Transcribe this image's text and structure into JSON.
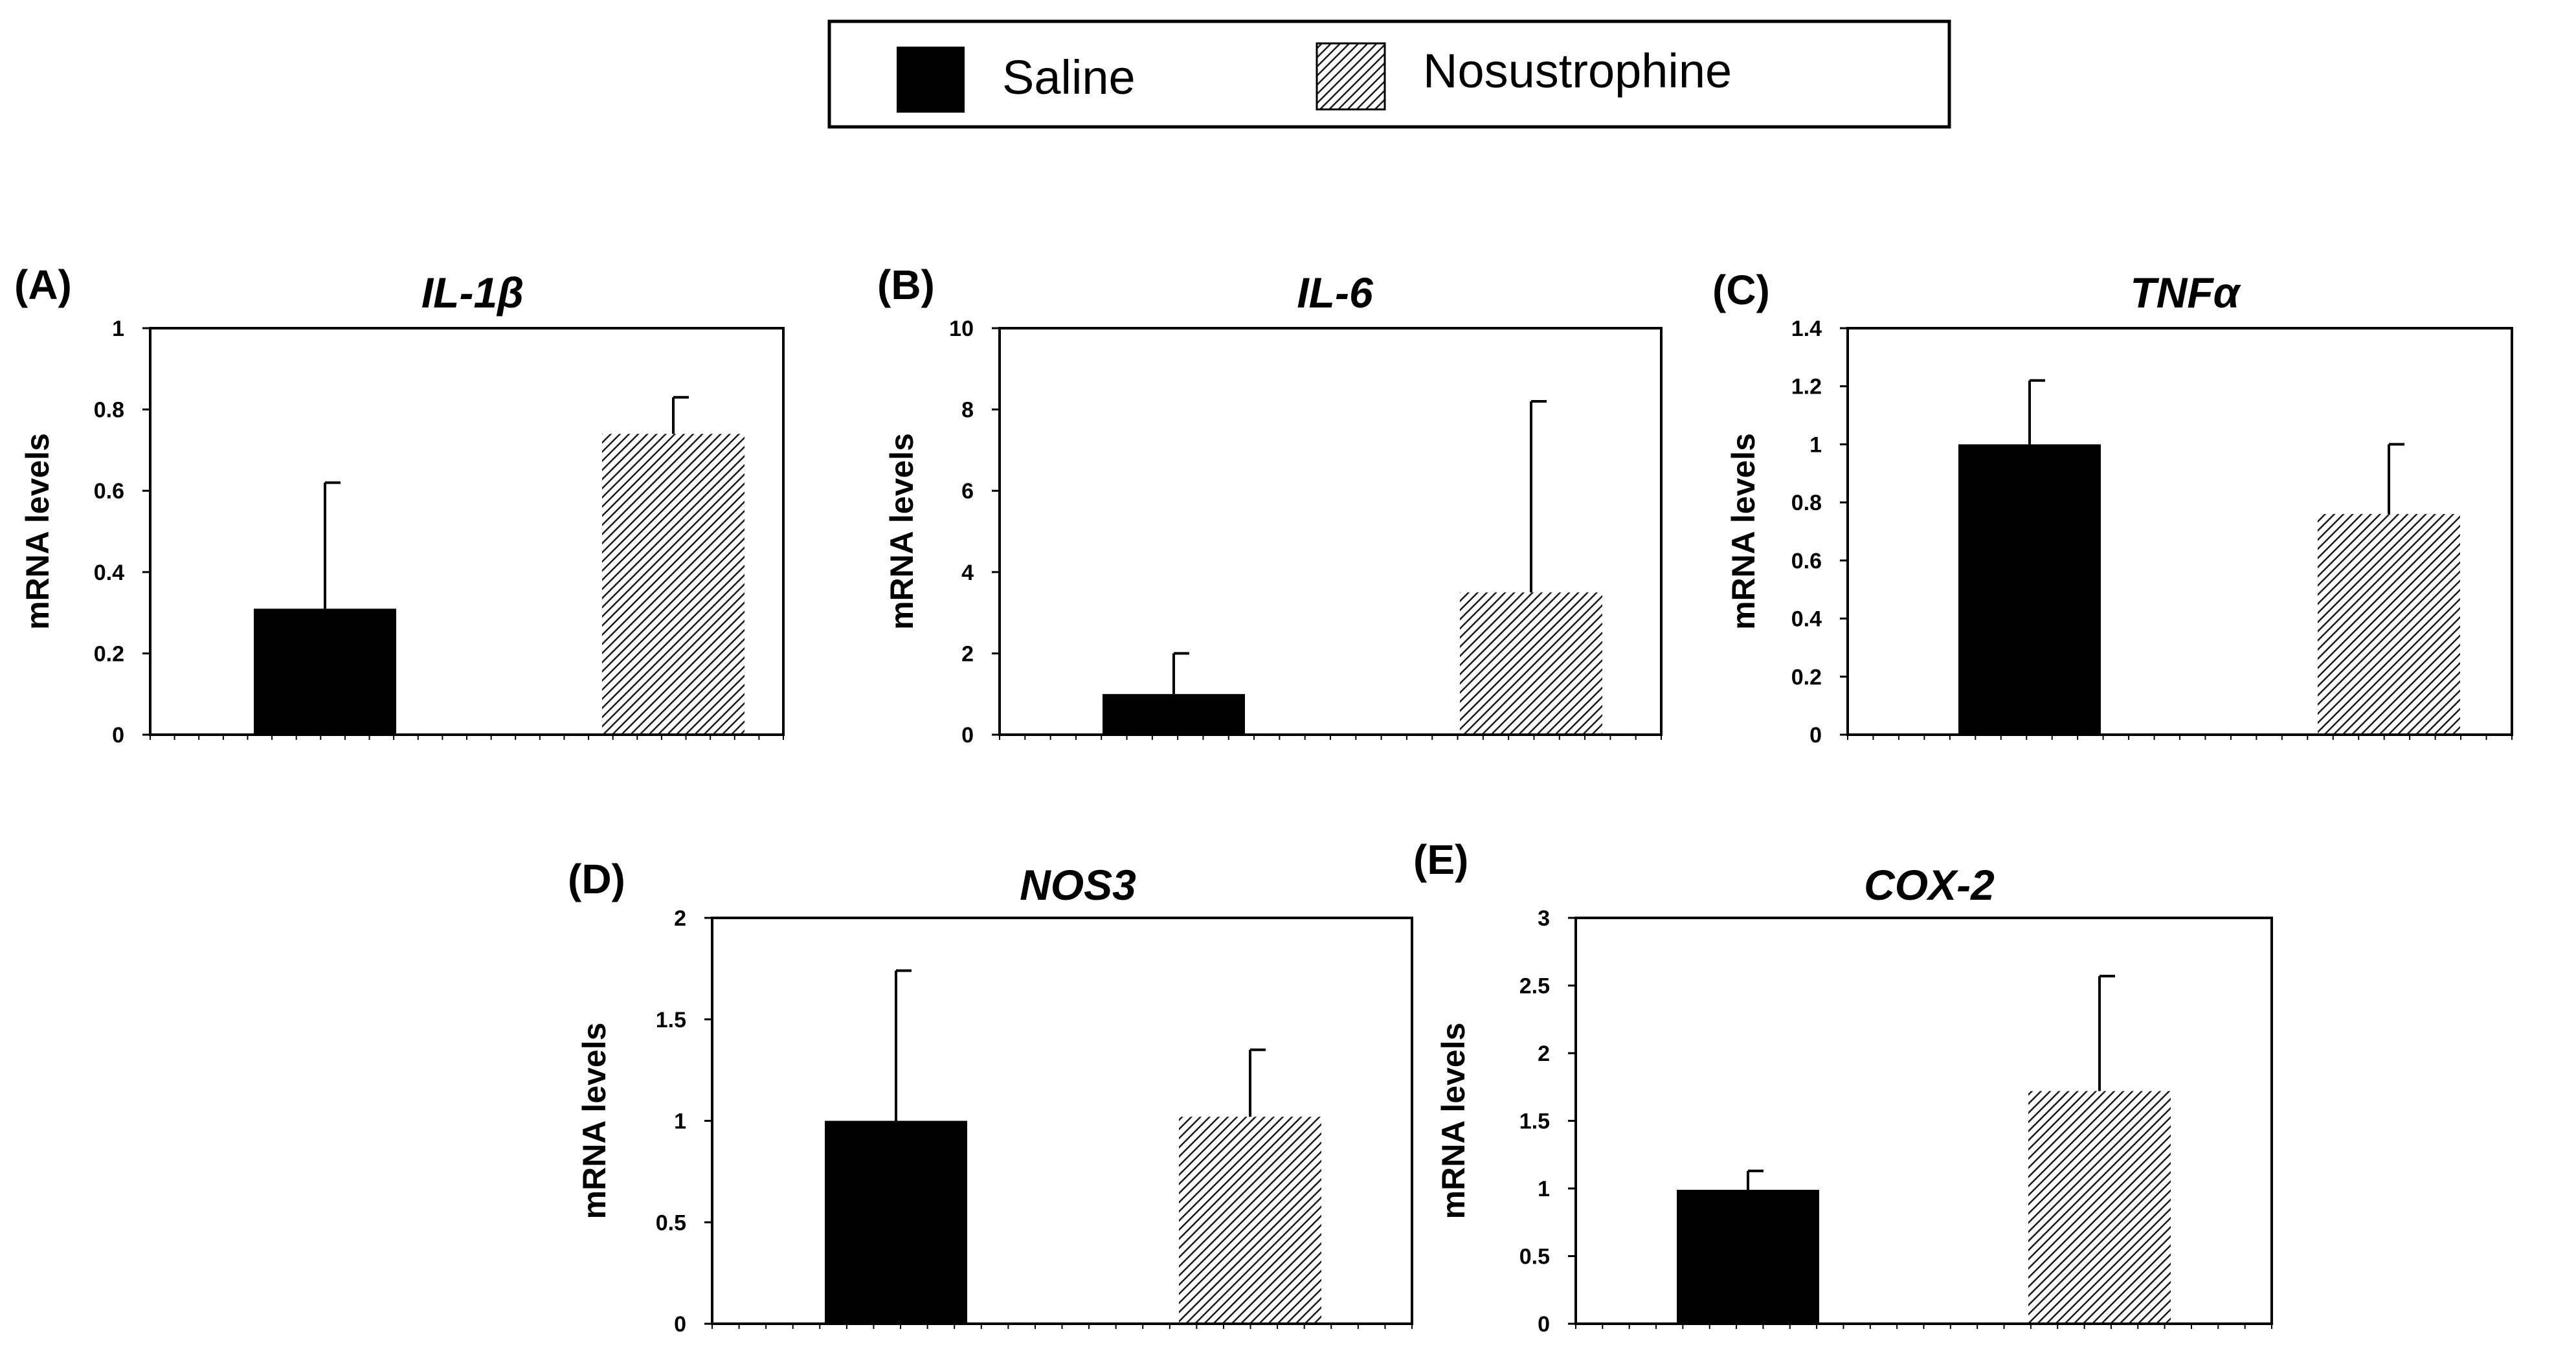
{
  "legend": {
    "saline_label": "Saline",
    "nosustrophine_label": "Nosustrophine",
    "saline_color": "#000000",
    "nosustrophine_pattern": "diagonal-hatch"
  },
  "chart_data": [
    {
      "type": "bar",
      "panel_label": "(A)",
      "title": "IL-1β",
      "ylabel": "mRNA levels",
      "ylim": [
        0,
        1
      ],
      "yticks": [
        "0",
        "0.2",
        "0.4",
        "0.6",
        "0.8",
        "1"
      ],
      "categories": [
        "Saline",
        "Nosustrophine"
      ],
      "values": [
        0.31,
        0.74
      ],
      "errors": [
        0.31,
        0.09
      ]
    },
    {
      "type": "bar",
      "panel_label": "(B)",
      "title": "IL-6",
      "ylabel": "mRNA levels",
      "ylim": [
        0,
        10
      ],
      "yticks": [
        "0",
        "2",
        "4",
        "6",
        "8",
        "10"
      ],
      "categories": [
        "Saline",
        "Nosustrophine"
      ],
      "values": [
        1.0,
        3.5
      ],
      "errors": [
        1.0,
        4.7
      ]
    },
    {
      "type": "bar",
      "panel_label": "(C)",
      "title": "TNFα",
      "ylabel": "mRNA levels",
      "ylim": [
        0,
        1.4
      ],
      "yticks": [
        "0",
        "0.2",
        "0.4",
        "0.6",
        "0.8",
        "1",
        "1.2",
        "1.4"
      ],
      "categories": [
        "Saline",
        "Nosustrophine"
      ],
      "values": [
        1.0,
        0.76
      ],
      "errors": [
        0.22,
        0.24
      ]
    },
    {
      "type": "bar",
      "panel_label": "(D)",
      "title": "NOS3",
      "ylabel": "mRNA levels",
      "ylim": [
        0,
        2
      ],
      "yticks": [
        "0",
        "0.5",
        "1",
        "1.5",
        "2"
      ],
      "categories": [
        "Saline",
        "Nosustrophine"
      ],
      "values": [
        1.0,
        1.02
      ],
      "errors": [
        0.74,
        0.33
      ]
    },
    {
      "type": "bar",
      "panel_label": "(E)",
      "title": "COX-2",
      "ylabel": "mRNA levels",
      "ylim": [
        0,
        3
      ],
      "yticks": [
        "0",
        "0.5",
        "1",
        "1.5",
        "2",
        "2.5",
        "3"
      ],
      "categories": [
        "Saline",
        "Nosustrophine"
      ],
      "values": [
        0.99,
        1.72
      ],
      "errors": [
        0.14,
        0.85
      ]
    }
  ]
}
